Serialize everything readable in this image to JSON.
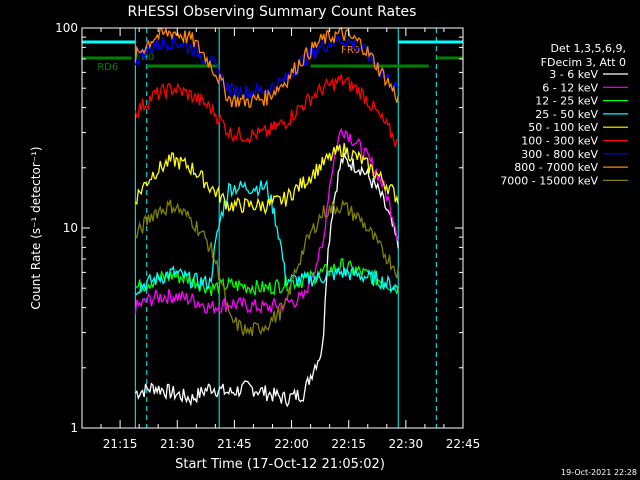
{
  "chart_data": {
    "type": "line",
    "title": "RHESSI Observing Summary Count Rates",
    "xlabel": "Start Time (17-Oct-12 21:05:02)",
    "ylabel": "Count Rate (s⁻¹ detector⁻¹)",
    "yscale": "log",
    "ylim": [
      1,
      100
    ],
    "xlim_minutes": [
      0,
      100
    ],
    "x_ticks": [
      "21:15",
      "21:30",
      "21:45",
      "22:00",
      "22:15",
      "22:30",
      "22:45"
    ],
    "y_ticks": [
      "1",
      "10",
      "100"
    ],
    "legend": {
      "header": [
        "Det 1,3,5,6,9,",
        "FDecim 3, Att 0"
      ],
      "placement": "right"
    },
    "annotations": {
      "flag_a": "RD6",
      "flag_b": "FR0",
      "flag_c": "FR0"
    },
    "timestamp": "19-Oct-2021 22:28",
    "series": [
      {
        "name": "3 - 6 keV",
        "color": "#ffffff",
        "values": [
          1.5,
          1.6,
          1.5,
          1.4,
          1.6,
          1.5,
          1.6,
          1.5,
          1.4,
          1.5,
          2.5,
          22,
          20,
          15,
          8
        ]
      },
      {
        "name": "6 - 12 keV",
        "color": "#ff00ff",
        "values": [
          4,
          4.5,
          4.6,
          4.4,
          4,
          4.2,
          4.1,
          4,
          4.2,
          4.5,
          8,
          32,
          25,
          18,
          9
        ]
      },
      {
        "name": "12 - 25 keV",
        "color": "#00ff00",
        "values": [
          5,
          5.5,
          5.8,
          5.5,
          5,
          5.2,
          5.1,
          5,
          5.3,
          5.5,
          6,
          6.5,
          6,
          5.5,
          5
        ]
      },
      {
        "name": "25 - 50 keV",
        "color": "#00ffff",
        "values": [
          5,
          5.5,
          6,
          5.5,
          5.3,
          16,
          16,
          16,
          5.5,
          5.5,
          5.7,
          6,
          5.8,
          5.5,
          5
        ]
      },
      {
        "name": "50 - 100 keV",
        "color": "#ffff00",
        "values": [
          14,
          19,
          22,
          20,
          16,
          13,
          13,
          13,
          14,
          17,
          21,
          25,
          22,
          18,
          14
        ]
      },
      {
        "name": "100 - 300 keV",
        "color": "#ff0000",
        "values": [
          38,
          46,
          50,
          46,
          40,
          30,
          29,
          30,
          34,
          42,
          50,
          55,
          48,
          36,
          26
        ]
      },
      {
        "name": "300 - 800 keV",
        "color": "#0000ff",
        "values": [
          70,
          82,
          86,
          80,
          68,
          49,
          48,
          49,
          55,
          70,
          82,
          88,
          80,
          62,
          48
        ]
      },
      {
        "name": "800 - 7000 keV",
        "color": "#ff8800",
        "values": [
          72,
          90,
          96,
          88,
          66,
          44,
          43,
          45,
          54,
          72,
          88,
          94,
          84,
          62,
          44
        ]
      },
      {
        "name": "7000 - 15000 keV",
        "color": "#808000",
        "values": [
          9,
          12,
          13,
          11,
          8,
          3.5,
          3,
          3.3,
          4,
          8,
          12,
          13,
          11,
          8,
          6
        ]
      }
    ]
  }
}
